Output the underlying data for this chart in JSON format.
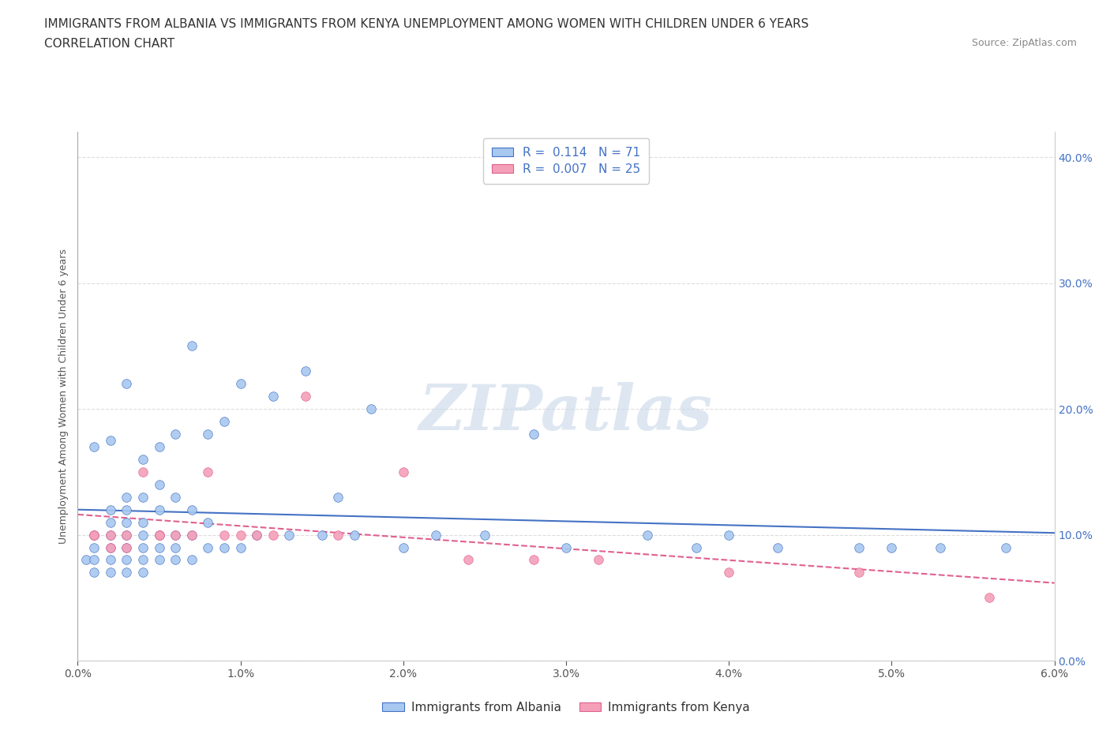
{
  "title_line1": "IMMIGRANTS FROM ALBANIA VS IMMIGRANTS FROM KENYA UNEMPLOYMENT AMONG WOMEN WITH CHILDREN UNDER 6 YEARS",
  "title_line2": "CORRELATION CHART",
  "source_text": "Source: ZipAtlas.com",
  "xlabel_ticks": [
    "0.0%",
    "1.0%",
    "2.0%",
    "3.0%",
    "4.0%",
    "5.0%",
    "6.0%"
  ],
  "ylabel_ticks_right": [
    "0.0%",
    "10.0%",
    "20.0%",
    "30.0%",
    "40.0%"
  ],
  "xlim": [
    0.0,
    0.06
  ],
  "ylim": [
    0.0,
    0.42
  ],
  "legend_label1": "Immigrants from Albania",
  "legend_label2": "Immigrants from Kenya",
  "legend_R1": "0.114",
  "legend_N1": "71",
  "legend_R2": "0.007",
  "legend_N2": "25",
  "color_albania": "#a8c8f0",
  "color_kenya": "#f4a0b8",
  "trendline_color_albania": "#4472c4",
  "trendline_color_kenya": "#e06090",
  "watermark_color": "#c8d8e8",
  "watermark_text": "ZIPatlas",
  "albania_x": [
    0.0005,
    0.001,
    0.001,
    0.001,
    0.001,
    0.001,
    0.002,
    0.002,
    0.002,
    0.002,
    0.002,
    0.002,
    0.002,
    0.003,
    0.003,
    0.003,
    0.003,
    0.003,
    0.003,
    0.003,
    0.003,
    0.004,
    0.004,
    0.004,
    0.004,
    0.004,
    0.004,
    0.004,
    0.005,
    0.005,
    0.005,
    0.005,
    0.005,
    0.005,
    0.006,
    0.006,
    0.006,
    0.006,
    0.006,
    0.007,
    0.007,
    0.007,
    0.007,
    0.008,
    0.008,
    0.008,
    0.009,
    0.009,
    0.01,
    0.01,
    0.011,
    0.012,
    0.013,
    0.014,
    0.015,
    0.016,
    0.017,
    0.018,
    0.02,
    0.022,
    0.025,
    0.028,
    0.03,
    0.035,
    0.038,
    0.04,
    0.043,
    0.048,
    0.05,
    0.053,
    0.057
  ],
  "albania_y": [
    0.08,
    0.07,
    0.08,
    0.09,
    0.1,
    0.17,
    0.07,
    0.08,
    0.09,
    0.1,
    0.11,
    0.12,
    0.175,
    0.07,
    0.08,
    0.09,
    0.1,
    0.11,
    0.12,
    0.13,
    0.22,
    0.07,
    0.08,
    0.09,
    0.1,
    0.11,
    0.13,
    0.16,
    0.08,
    0.09,
    0.1,
    0.12,
    0.14,
    0.17,
    0.08,
    0.09,
    0.1,
    0.13,
    0.18,
    0.08,
    0.1,
    0.12,
    0.25,
    0.09,
    0.11,
    0.18,
    0.09,
    0.19,
    0.09,
    0.22,
    0.1,
    0.21,
    0.1,
    0.23,
    0.1,
    0.13,
    0.1,
    0.2,
    0.09,
    0.1,
    0.1,
    0.18,
    0.09,
    0.1,
    0.09,
    0.1,
    0.09,
    0.09,
    0.09,
    0.09,
    0.09
  ],
  "kenya_x": [
    0.001,
    0.001,
    0.002,
    0.002,
    0.003,
    0.003,
    0.004,
    0.005,
    0.005,
    0.006,
    0.007,
    0.008,
    0.009,
    0.01,
    0.011,
    0.012,
    0.014,
    0.016,
    0.02,
    0.024,
    0.028,
    0.032,
    0.04,
    0.048,
    0.056
  ],
  "kenya_y": [
    0.1,
    0.1,
    0.09,
    0.1,
    0.09,
    0.1,
    0.15,
    0.1,
    0.1,
    0.1,
    0.1,
    0.15,
    0.1,
    0.1,
    0.1,
    0.1,
    0.21,
    0.1,
    0.15,
    0.08,
    0.08,
    0.08,
    0.07,
    0.07,
    0.05
  ],
  "background_color": "#ffffff",
  "grid_color": "#dddddd",
  "title_fontsize": 11,
  "tick_fontsize": 10,
  "legend_fontsize": 11,
  "source_fontsize": 9,
  "ylabel_text": "Unemployment Among Women with Children Under 6 years"
}
